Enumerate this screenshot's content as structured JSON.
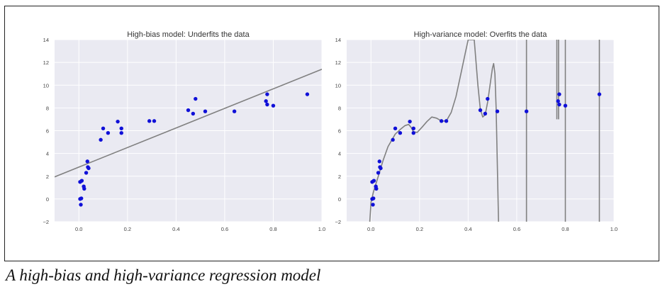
{
  "caption": "A high-bias and high-variance regression model",
  "colors": {
    "axes_bg": "#EAEAF2",
    "grid": "#ffffff",
    "points": "#1010D8",
    "fit_line": "#808080"
  },
  "chart_data": [
    {
      "type": "scatter",
      "title": "High-bias model: Underfits the data",
      "xlim": [
        -0.1,
        1.0
      ],
      "ylim": [
        -2,
        14
      ],
      "xticks": [
        0.0,
        0.2,
        0.4,
        0.6,
        0.8,
        1.0
      ],
      "xtick_labels": [
        "0.0",
        "0.2",
        "0.4",
        "0.6",
        "0.8",
        "1.0"
      ],
      "yticks": [
        -2,
        0,
        2,
        4,
        6,
        8,
        10,
        12,
        14
      ],
      "ytick_labels": [
        "−2",
        "0",
        "2",
        "4",
        "6",
        "8",
        "10",
        "12",
        "14"
      ],
      "grid": true,
      "points": [
        [
          0.005,
          0.0
        ],
        [
          0.008,
          -0.5
        ],
        [
          0.01,
          0.05
        ],
        [
          0.005,
          1.5
        ],
        [
          0.012,
          1.6
        ],
        [
          0.02,
          1.1
        ],
        [
          0.022,
          0.9
        ],
        [
          0.03,
          2.3
        ],
        [
          0.035,
          3.3
        ],
        [
          0.037,
          2.8
        ],
        [
          0.04,
          2.7
        ],
        [
          0.09,
          5.2
        ],
        [
          0.1,
          6.2
        ],
        [
          0.12,
          5.8
        ],
        [
          0.16,
          6.8
        ],
        [
          0.175,
          6.2
        ],
        [
          0.175,
          5.8
        ],
        [
          0.29,
          6.85
        ],
        [
          0.31,
          6.85
        ],
        [
          0.45,
          7.8
        ],
        [
          0.47,
          7.5
        ],
        [
          0.48,
          8.8
        ],
        [
          0.52,
          7.7
        ],
        [
          0.64,
          7.7
        ],
        [
          0.77,
          8.6
        ],
        [
          0.775,
          9.2
        ],
        [
          0.775,
          8.3
        ],
        [
          0.8,
          8.2
        ],
        [
          0.94,
          9.2
        ]
      ],
      "fit": {
        "kind": "linear",
        "intercept": 2.8,
        "slope": 8.6
      }
    },
    {
      "type": "scatter",
      "title": "High-variance model: Overfits the data",
      "xlim": [
        -0.1,
        1.0
      ],
      "ylim": [
        -2,
        14
      ],
      "xticks": [
        0.0,
        0.2,
        0.4,
        0.6,
        0.8,
        1.0
      ],
      "xtick_labels": [
        "0.0",
        "0.2",
        "0.4",
        "0.6",
        "0.8",
        "1.0"
      ],
      "yticks": [
        -2,
        0,
        2,
        4,
        6,
        8,
        10,
        12,
        14
      ],
      "ytick_labels": [
        "−2",
        "0",
        "2",
        "4",
        "6",
        "8",
        "10",
        "12",
        "14"
      ],
      "grid": true,
      "points": [
        [
          0.005,
          0.0
        ],
        [
          0.008,
          -0.5
        ],
        [
          0.01,
          0.05
        ],
        [
          0.005,
          1.5
        ],
        [
          0.012,
          1.6
        ],
        [
          0.02,
          1.1
        ],
        [
          0.022,
          0.9
        ],
        [
          0.03,
          2.3
        ],
        [
          0.035,
          3.3
        ],
        [
          0.037,
          2.8
        ],
        [
          0.04,
          2.7
        ],
        [
          0.09,
          5.2
        ],
        [
          0.1,
          6.2
        ],
        [
          0.12,
          5.8
        ],
        [
          0.16,
          6.8
        ],
        [
          0.175,
          6.2
        ],
        [
          0.175,
          5.8
        ],
        [
          0.29,
          6.85
        ],
        [
          0.31,
          6.85
        ],
        [
          0.45,
          7.8
        ],
        [
          0.47,
          7.5
        ],
        [
          0.48,
          8.8
        ],
        [
          0.52,
          7.7
        ],
        [
          0.64,
          7.7
        ],
        [
          0.77,
          8.6
        ],
        [
          0.775,
          9.2
        ],
        [
          0.775,
          8.3
        ],
        [
          0.8,
          8.2
        ],
        [
          0.94,
          9.2
        ]
      ],
      "fit_curve": [
        [
          -0.005,
          -2.0
        ],
        [
          0.0,
          -0.3
        ],
        [
          0.01,
          0.6
        ],
        [
          0.02,
          1.3
        ],
        [
          0.03,
          2.0
        ],
        [
          0.05,
          3.4
        ],
        [
          0.07,
          4.6
        ],
        [
          0.1,
          5.7
        ],
        [
          0.12,
          6.1
        ],
        [
          0.14,
          6.45
        ],
        [
          0.155,
          6.55
        ],
        [
          0.165,
          6.3
        ],
        [
          0.175,
          5.9
        ],
        [
          0.19,
          5.85
        ],
        [
          0.21,
          6.3
        ],
        [
          0.23,
          6.8
        ],
        [
          0.25,
          7.2
        ],
        [
          0.27,
          7.1
        ],
        [
          0.29,
          6.85
        ],
        [
          0.31,
          6.85
        ],
        [
          0.33,
          7.6
        ],
        [
          0.35,
          9.0
        ],
        [
          0.37,
          11.0
        ],
        [
          0.39,
          13.0
        ],
        [
          0.4,
          14.0
        ],
        [
          0.425,
          14.0
        ],
        [
          0.44,
          10.0
        ],
        [
          0.45,
          7.9
        ],
        [
          0.46,
          7.2
        ],
        [
          0.47,
          7.4
        ],
        [
          0.48,
          8.5
        ],
        [
          0.49,
          10.0
        ],
        [
          0.5,
          11.5
        ],
        [
          0.505,
          11.9
        ],
        [
          0.51,
          11.0
        ],
        [
          0.515,
          8.0
        ],
        [
          0.52,
          3.0
        ],
        [
          0.525,
          -2.0
        ]
      ],
      "fit_spikes": [
        {
          "x": 0.64,
          "y_from": 14.0,
          "y_to": -2.0
        },
        {
          "x": 0.765,
          "y_from": 14.0,
          "y_to": 7.0
        },
        {
          "x": 0.772,
          "y_from": 7.0,
          "y_to": 14.0
        },
        {
          "x": 0.8,
          "y_from": 14.0,
          "y_to": -2.0
        },
        {
          "x": 0.94,
          "y_from": 14.0,
          "y_to": -2.0
        }
      ]
    }
  ]
}
